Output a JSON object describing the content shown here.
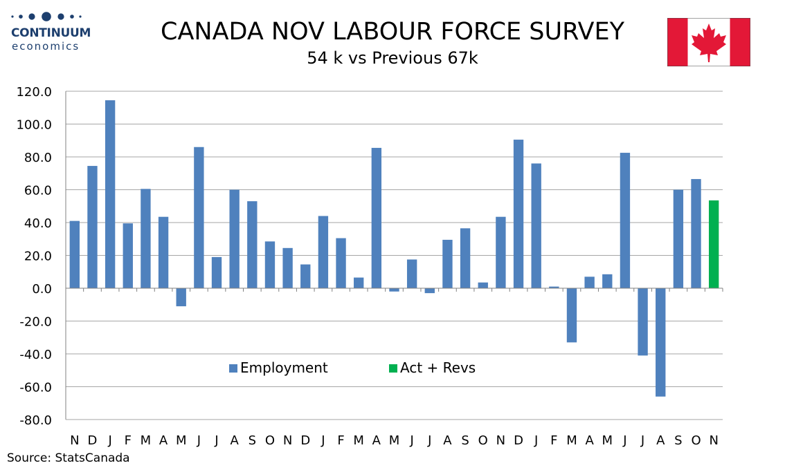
{
  "logo": {
    "name": "CONTINUUM",
    "sub": "economics"
  },
  "title": "CANADA NOV LABOUR FORCE SURVEY",
  "subtitle": "54 k vs Previous 67k",
  "source": "Source: StatsCanada",
  "colors": {
    "employment": "#4f81bd",
    "act_revs": "#00b050",
    "grid": "#a6a6a6",
    "flag_red": "#e31837",
    "logo": "#1d3f6e"
  },
  "chart_data": {
    "type": "bar",
    "categories": [
      "N",
      "D",
      "J",
      "F",
      "M",
      "A",
      "M",
      "J",
      "J",
      "A",
      "S",
      "O",
      "N",
      "D",
      "J",
      "F",
      "M",
      "A",
      "M",
      "J",
      "J",
      "A",
      "S",
      "O",
      "N",
      "D",
      "J",
      "F",
      "M",
      "A",
      "M",
      "J",
      "J",
      "A",
      "S",
      "O",
      "N"
    ],
    "series": [
      {
        "name": "Employment",
        "values": [
          41,
          74.5,
          114.5,
          39.5,
          60.5,
          43.5,
          -11,
          86,
          19,
          60,
          53,
          28.5,
          24.5,
          14.5,
          44,
          30.5,
          6.5,
          85.5,
          -2,
          17.5,
          -3,
          29.5,
          36.5,
          3.5,
          43.5,
          90.5,
          76,
          1,
          -33,
          7,
          8.5,
          82.5,
          -41,
          -66,
          60,
          66.5,
          null
        ]
      },
      {
        "name": "Act + Revs",
        "values": [
          null,
          null,
          null,
          null,
          null,
          null,
          null,
          null,
          null,
          null,
          null,
          null,
          null,
          null,
          null,
          null,
          null,
          null,
          null,
          null,
          null,
          null,
          null,
          null,
          null,
          null,
          null,
          null,
          null,
          null,
          null,
          null,
          null,
          null,
          null,
          null,
          53.5
        ]
      }
    ],
    "ylim": [
      -80,
      120
    ],
    "yticks": [
      120,
      100,
      80,
      60,
      40,
      20,
      0,
      -20,
      -40,
      -60,
      -80
    ],
    "ytick_labels": [
      "120.0",
      "100.0",
      "80.0",
      "60.0",
      "40.0",
      "20.0",
      "0.0",
      "-20.0",
      "-40.0",
      "-60.0",
      "-80.0"
    ],
    "grid": true,
    "legend": "inside-bottom-center"
  }
}
